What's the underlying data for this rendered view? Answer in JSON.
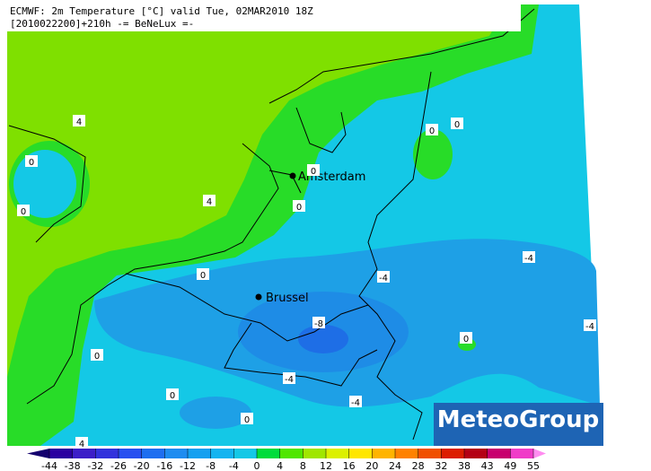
{
  "header": {
    "line1": "ECMWF: 2m Temperature [°C] valid Tue, 02MAR2010 18Z",
    "line2": "[2010022200]+210h -= BeNeLux =-"
  },
  "cities": [
    "Amsterdam",
    "Brussel"
  ],
  "contour_labels": [
    4,
    0,
    0,
    4,
    0,
    0,
    0,
    0,
    0,
    -4,
    -4,
    -8,
    -4,
    0,
    0,
    -4,
    0,
    -4,
    0,
    4
  ],
  "colorbar": {
    "ticks": [
      -44,
      -38,
      -32,
      -26,
      -20,
      -16,
      -12,
      -8,
      -4,
      0,
      4,
      8,
      12,
      16,
      20,
      24,
      28,
      32,
      38,
      43,
      49,
      55
    ],
    "colors": [
      "#14006e",
      "#2a00a0",
      "#3c1ec8",
      "#3232dc",
      "#2850f0",
      "#1e6ef0",
      "#1e8cf0",
      "#14a0f0",
      "#14b4f0",
      "#14c8e6",
      "#00dc3c",
      "#50e600",
      "#a0e600",
      "#dcf000",
      "#ffe600",
      "#ffb400",
      "#ff8200",
      "#f05000",
      "#dc1e00",
      "#b40014",
      "#c8006e",
      "#f03cc8",
      "#ff8cf0"
    ]
  },
  "logo": "MeteoGroup"
}
